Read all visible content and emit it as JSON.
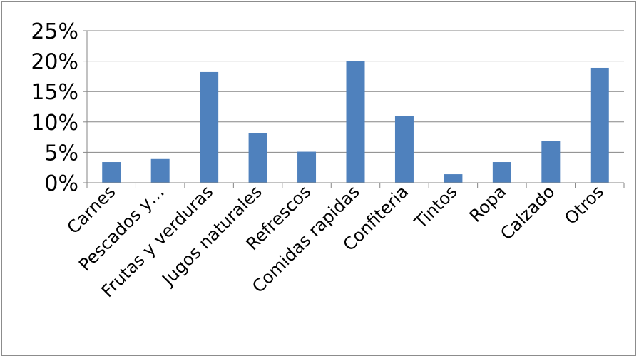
{
  "chart_data": {
    "type": "bar",
    "title": "",
    "xlabel": "",
    "ylabel": "",
    "categories": [
      "Carnes",
      "Pescados y…",
      "Frutas y verduras",
      "Jugos naturales",
      "Refrescos",
      "Comidas rapidas",
      "Confiteria",
      "Tintos",
      "Ropa",
      "Calzado",
      "Otros"
    ],
    "values": [
      3.4,
      3.9,
      18.2,
      8.1,
      5.1,
      20.0,
      11.0,
      1.4,
      3.4,
      6.9,
      18.9
    ],
    "ylim": [
      0,
      25
    ],
    "yticks": [
      0,
      5,
      10,
      15,
      20,
      25
    ],
    "ytick_labels": [
      "0%",
      "5%",
      "10%",
      "15%",
      "20%",
      "25%"
    ],
    "grid": true,
    "legend": "none",
    "colors": {
      "bar": "#4f81bd",
      "grid": "#868686",
      "axis": "#868686"
    }
  }
}
